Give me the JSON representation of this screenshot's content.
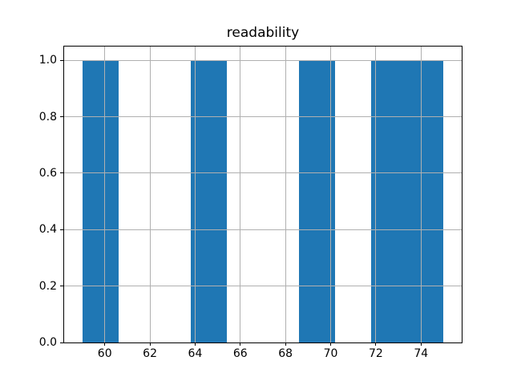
{
  "title": "readability",
  "chart_data": {
    "type": "bar",
    "subtype": "histogram",
    "title": "readability",
    "xlabel": "",
    "ylabel": "",
    "xlim": [
      58.2,
      75.8
    ],
    "ylim": [
      0,
      1.05
    ],
    "grid": true,
    "legend": false,
    "bin_width": 1.6,
    "bin_start": 59.0,
    "bars": [
      {
        "x0": 59.0,
        "x1": 60.6,
        "height": 1.0
      },
      {
        "x0": 63.8,
        "x1": 65.4,
        "height": 1.0
      },
      {
        "x0": 68.6,
        "x1": 70.2,
        "height": 1.0
      },
      {
        "x0": 71.8,
        "x1": 73.4,
        "height": 1.0
      },
      {
        "x0": 73.4,
        "x1": 75.0,
        "height": 1.0
      }
    ],
    "x_ticks": [
      {
        "v": 60,
        "label": "60"
      },
      {
        "v": 62,
        "label": "62"
      },
      {
        "v": 64,
        "label": "64"
      },
      {
        "v": 66,
        "label": "66"
      },
      {
        "v": 68,
        "label": "68"
      },
      {
        "v": 70,
        "label": "70"
      },
      {
        "v": 72,
        "label": "72"
      },
      {
        "v": 74,
        "label": "74"
      }
    ],
    "y_ticks": [
      {
        "v": 0.0,
        "label": "0.0"
      },
      {
        "v": 0.2,
        "label": "0.2"
      },
      {
        "v": 0.4,
        "label": "0.4"
      },
      {
        "v": 0.6,
        "label": "0.6"
      },
      {
        "v": 0.8,
        "label": "0.8"
      },
      {
        "v": 1.0,
        "label": "1.0"
      }
    ],
    "colors": {
      "bar": "#1f77b4",
      "grid": "#b0b0b0",
      "spine": "#000000",
      "background": "#ffffff",
      "text": "#000000"
    }
  }
}
